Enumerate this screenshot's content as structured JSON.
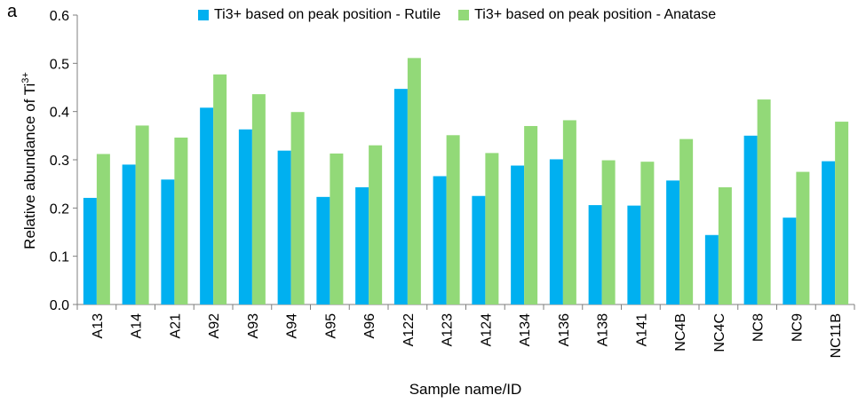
{
  "panel_label": "a",
  "chart_data": {
    "type": "bar",
    "title": "",
    "xlabel": "Sample name/ID",
    "ylabel": "Relative abundance of Ti",
    "ylabel_superscript": "3+",
    "ylim": [
      0,
      0.6
    ],
    "yticks": [
      "0.0",
      "0.1",
      "0.2",
      "0.3",
      "0.4",
      "0.5",
      "0.6"
    ],
    "grid": false,
    "legend_position": "top-right",
    "categories": [
      "A13",
      "A14",
      "A21",
      "A92",
      "A93",
      "A94",
      "A95",
      "A96",
      "A122",
      "A123",
      "A124",
      "A134",
      "A136",
      "A138",
      "A141",
      "NC4B",
      "NC4C",
      "NC8",
      "NC9",
      "NC11B"
    ],
    "series": [
      {
        "name": "Ti3+ based on peak position - Rutile",
        "color": "#00B0F0",
        "values": [
          0.221,
          0.29,
          0.259,
          0.408,
          0.363,
          0.319,
          0.223,
          0.243,
          0.447,
          0.266,
          0.225,
          0.288,
          0.301,
          0.206,
          0.205,
          0.257,
          0.144,
          0.35,
          0.18,
          0.297
        ]
      },
      {
        "name": "Ti3+ based on peak position - Anatase",
        "color": "#92D978",
        "values": [
          0.312,
          0.371,
          0.346,
          0.477,
          0.436,
          0.399,
          0.313,
          0.33,
          0.511,
          0.351,
          0.314,
          0.37,
          0.382,
          0.299,
          0.296,
          0.343,
          0.243,
          0.425,
          0.275,
          0.379
        ]
      }
    ]
  }
}
